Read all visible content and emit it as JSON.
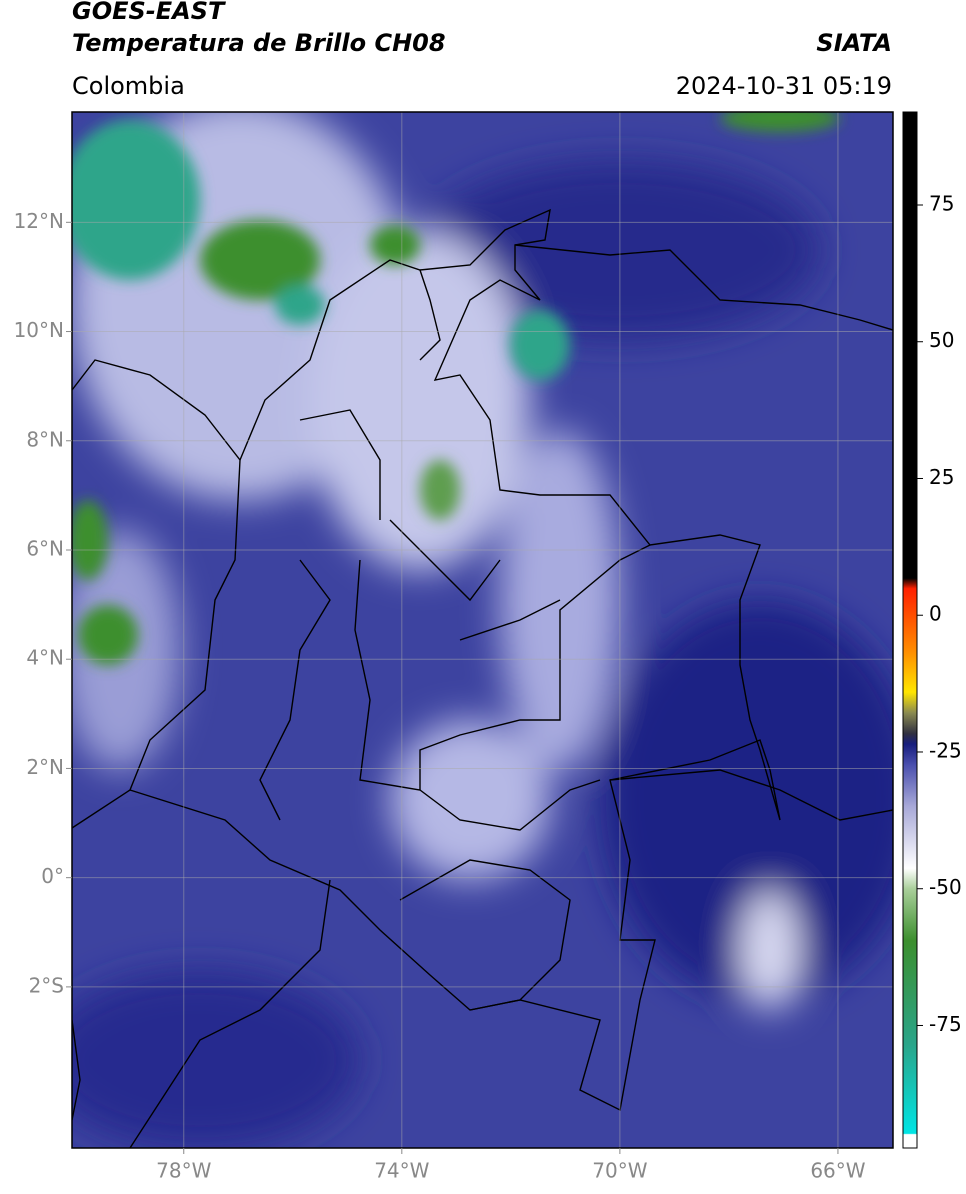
{
  "header": {
    "title_line1": "GOES-EAST",
    "title_line2": "Temperatura de Brillo CH08",
    "source": "SIATA",
    "region": "Colombia",
    "datetime": "2024-10-31 05:19"
  },
  "map": {
    "xlim": [
      -80.05,
      -64.99
    ],
    "ylim": [
      -4.95,
      14.02
    ],
    "xticks": [
      {
        "value": -78,
        "label": "78°W"
      },
      {
        "value": -74,
        "label": "74°W"
      },
      {
        "value": -70,
        "label": "70°W"
      },
      {
        "value": -66,
        "label": "66°W"
      }
    ],
    "yticks": [
      {
        "value": 12,
        "label": "12°N"
      },
      {
        "value": 10,
        "label": "10°N"
      },
      {
        "value": 8,
        "label": "8°N"
      },
      {
        "value": 6,
        "label": "6°N"
      },
      {
        "value": 4,
        "label": "4°N"
      },
      {
        "value": 2,
        "label": "2°N"
      },
      {
        "value": 0,
        "label": "0°"
      },
      {
        "value": -2,
        "label": "2°S"
      }
    ]
  },
  "colorbar": {
    "lim": [
      -97.4,
      92
    ],
    "ticks": [
      75,
      50,
      25,
      0,
      -25,
      -50,
      -75
    ]
  }
}
